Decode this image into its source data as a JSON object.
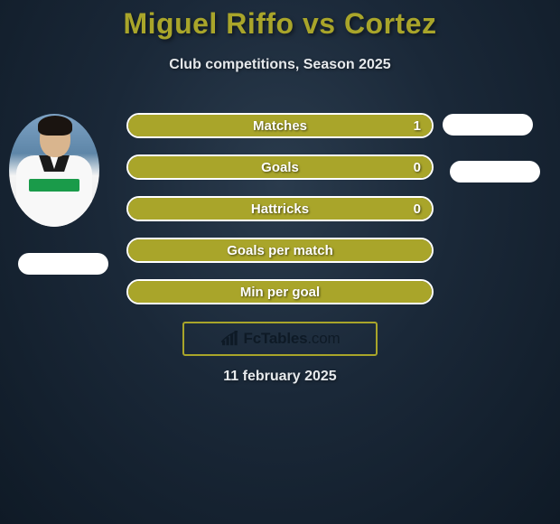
{
  "title_color": "#a9a52a",
  "title": "Miguel Riffo vs Cortez",
  "subtitle": "Club competitions, Season 2025",
  "bar_color": "#a9a52a",
  "bar_border_color": "#ffffff",
  "text_color": "#ffffff",
  "background_gradient": [
    "#2a3b4d",
    "#1a2838",
    "#0f1a26"
  ],
  "rows": [
    {
      "label": "Matches",
      "value": "1",
      "fill_pct": 100
    },
    {
      "label": "Goals",
      "value": "0",
      "fill_pct": 100
    },
    {
      "label": "Hattricks",
      "value": "0",
      "fill_pct": 100
    },
    {
      "label": "Goals per match",
      "value": "",
      "fill_pct": 100
    },
    {
      "label": "Min per goal",
      "value": "",
      "fill_pct": 100
    }
  ],
  "brand": {
    "name": "FcTables",
    "suffix": ".com",
    "border_color": "#a9a52a",
    "icon_color": "#0e1a26"
  },
  "date": "11 february 2025",
  "avatar_left": {
    "present": true,
    "jersey_color": "#f8f8f8",
    "sponsor_color": "#1a9b4a"
  },
  "pills": {
    "color": "#ffffff",
    "left_count": 1,
    "right_count": 2
  }
}
